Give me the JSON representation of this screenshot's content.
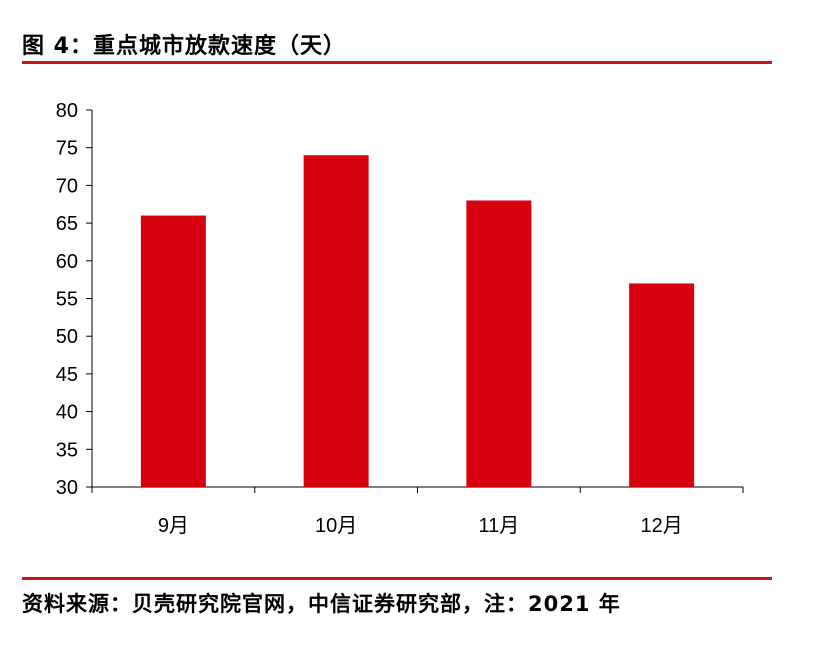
{
  "figure": {
    "title": "图 4：重点城市放款速度（天）",
    "source": "资料来源：贝壳研究院官网，中信证券研究部，注：2021 年"
  },
  "colors": {
    "bar": "#d7000f",
    "rule": "#c8161d"
  },
  "chart_data": {
    "type": "bar",
    "categories": [
      "9月",
      "10月",
      "11月",
      "12月"
    ],
    "values": [
      66,
      74,
      68,
      57
    ],
    "ylim": [
      30,
      80
    ],
    "yticks": [
      30,
      35,
      40,
      45,
      50,
      55,
      60,
      65,
      70,
      75,
      80
    ],
    "grid": false,
    "legend": "none"
  }
}
